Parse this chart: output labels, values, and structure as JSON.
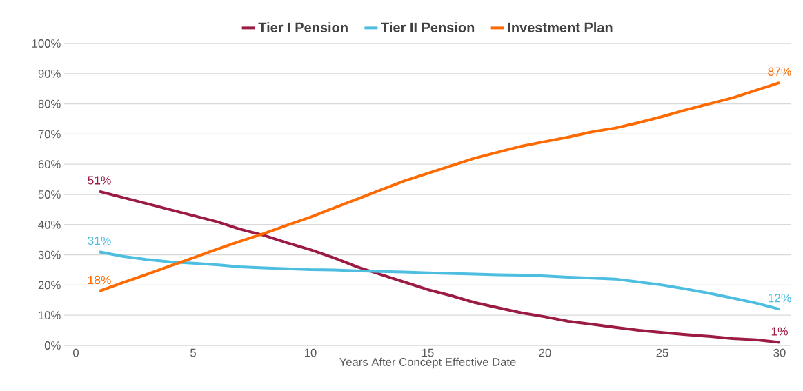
{
  "chart_data": {
    "type": "line",
    "xlabel": "Years After Concept Effective Date",
    "x": [
      1,
      2,
      3,
      4,
      5,
      6,
      7,
      8,
      9,
      10,
      11,
      12,
      13,
      14,
      15,
      16,
      17,
      18,
      19,
      20,
      21,
      22,
      23,
      24,
      25,
      26,
      27,
      28,
      29,
      30
    ],
    "series": [
      {
        "name": "Tier I Pension",
        "color": "#9b1b42",
        "values": [
          51,
          49,
          47,
          45,
          43,
          41,
          38.5,
          36.5,
          34,
          31.7,
          29,
          26,
          23.5,
          21,
          18.5,
          16.5,
          14.2,
          12.5,
          10.8,
          9.5,
          8,
          7,
          6,
          5,
          4.3,
          3.6,
          3,
          2.3,
          1.9,
          1
        ],
        "value_labels": [
          "51%",
          null,
          null,
          null,
          null,
          null,
          null,
          null,
          null,
          null,
          null,
          null,
          null,
          null,
          null,
          null,
          null,
          null,
          null,
          null,
          null,
          null,
          null,
          null,
          null,
          null,
          null,
          null,
          null,
          "1%"
        ]
      },
      {
        "name": "Tier II Pension",
        "color": "#4dbde0",
        "values": [
          31,
          29.5,
          28.5,
          27.7,
          27.2,
          26.7,
          26,
          25.7,
          25.4,
          25.1,
          25,
          24.7,
          24.5,
          24.3,
          24,
          23.8,
          23.6,
          23.4,
          23.3,
          23,
          22.6,
          22.3,
          22,
          21,
          20,
          18.7,
          17.3,
          15.7,
          14,
          12
        ],
        "value_labels": [
          "31%",
          null,
          null,
          null,
          null,
          null,
          null,
          null,
          null,
          null,
          null,
          null,
          null,
          null,
          null,
          null,
          null,
          null,
          null,
          null,
          null,
          null,
          null,
          null,
          null,
          null,
          null,
          null,
          null,
          "12%"
        ]
      },
      {
        "name": "Investment Plan",
        "color": "#ff6a00",
        "values": [
          18,
          20.8,
          23.5,
          26.3,
          29,
          31.8,
          34.5,
          37,
          39.8,
          42.5,
          45.5,
          48.5,
          51.5,
          54.5,
          57,
          59.5,
          62,
          64,
          66,
          67.5,
          69,
          70.7,
          72,
          73.8,
          75.8,
          78,
          80,
          82,
          84.5,
          87
        ],
        "value_labels": [
          "18%",
          null,
          null,
          null,
          null,
          null,
          null,
          null,
          null,
          null,
          null,
          null,
          null,
          null,
          null,
          null,
          null,
          null,
          null,
          null,
          null,
          null,
          null,
          null,
          null,
          null,
          null,
          null,
          null,
          "87%"
        ]
      }
    ],
    "xlim": [
      -0.5,
      30.5
    ],
    "ylim": [
      0,
      100
    ],
    "xticks": [
      0,
      5,
      10,
      15,
      20,
      25,
      30
    ],
    "yticks": [
      {
        "value": 0,
        "label": "0%"
      },
      {
        "value": 10,
        "label": "10%"
      },
      {
        "value": 20,
        "label": "20%"
      },
      {
        "value": 30,
        "label": "30%"
      },
      {
        "value": 40,
        "label": "40%"
      },
      {
        "value": 50,
        "label": "50%"
      },
      {
        "value": 60,
        "label": "60%"
      },
      {
        "value": 70,
        "label": "70%"
      },
      {
        "value": 80,
        "label": "80%"
      },
      {
        "value": 90,
        "label": "90%"
      },
      {
        "value": 100,
        "label": "100%"
      }
    ],
    "grid": "y",
    "legend": "top"
  }
}
